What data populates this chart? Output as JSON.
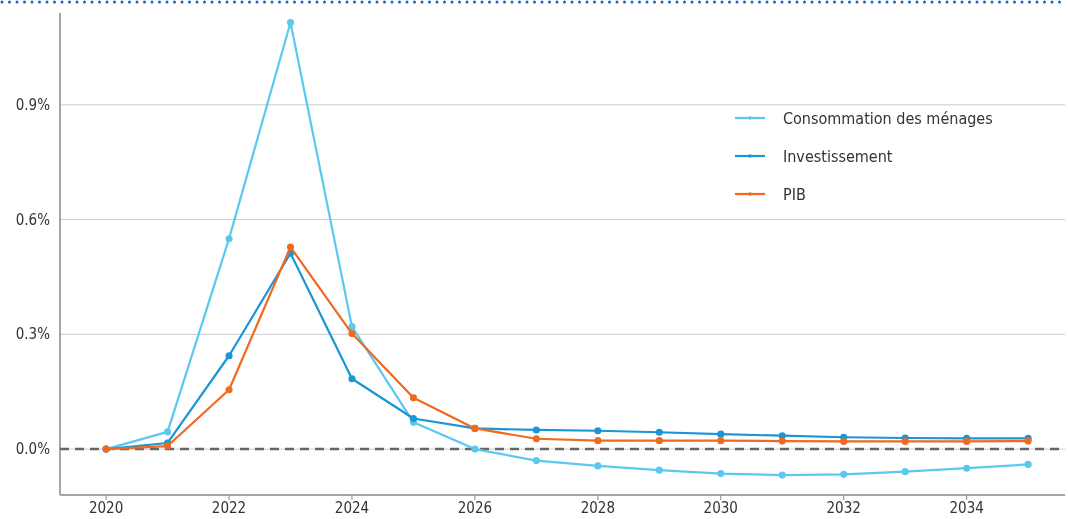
{
  "chart_data": {
    "type": "line",
    "x": [
      2020,
      2021,
      2022,
      2023,
      2024,
      2025,
      2026,
      2027,
      2028,
      2029,
      2030,
      2031,
      2032,
      2033,
      2034,
      2035
    ],
    "series": [
      {
        "name": "Consommation des ménages",
        "color": "#5bc8f0",
        "values": [
          0,
          0.045,
          0.55,
          1.115,
          0.32,
          0.07,
          0,
          -0.03,
          -0.044,
          -0.055,
          -0.064,
          -0.068,
          -0.066,
          -0.059,
          -0.05,
          -0.04
        ]
      },
      {
        "name": "Investissement",
        "color": "#1a96d4",
        "values": [
          0,
          0.016,
          0.244,
          0.512,
          0.184,
          0.08,
          0.054,
          0.05,
          0.048,
          0.044,
          0.039,
          0.035,
          0.031,
          0.029,
          0.028,
          0.028
        ]
      },
      {
        "name": "PIB",
        "color": "#f0691e",
        "values": [
          0,
          0.008,
          0.155,
          0.528,
          0.302,
          0.134,
          0.054,
          0.027,
          0.022,
          0.022,
          0.022,
          0.021,
          0.02,
          0.02,
          0.02,
          0.021
        ]
      }
    ],
    "xlim": [
      2019.25,
      2035.6
    ],
    "xticks": [
      2020,
      2022,
      2024,
      2026,
      2028,
      2030,
      2032,
      2034
    ],
    "ylim": [
      -0.12,
      1.14
    ],
    "yticks": [
      {
        "value": 0,
        "label": "0.0%"
      },
      {
        "value": 0.3,
        "label": "0.3%"
      },
      {
        "value": 0.6,
        "label": "0.6%"
      },
      {
        "value": 0.9,
        "label": "0.9%"
      }
    ],
    "grid": "y",
    "legend": "top right",
    "marker": "circle",
    "line_style": "solid",
    "ref_lines": [
      {
        "axis": "y",
        "value": 0,
        "label": null,
        "color": "#666666",
        "line_style": "dashed"
      }
    ]
  }
}
